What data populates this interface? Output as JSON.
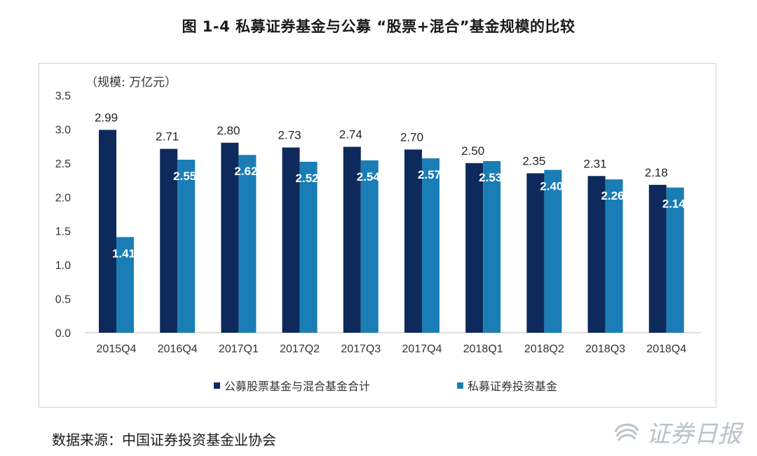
{
  "page": {
    "title": "图 1-4  私募证券基金与公募 “股票+混合”基金规模的比较",
    "unit_label": "（规模: 万亿元）",
    "source": "数据来源：中国证券投资基金业协会",
    "watermark": "证券日报"
  },
  "colors": {
    "series_public": "#0e2a5c",
    "series_private": "#1a7db5",
    "axis_text": "#333333"
  },
  "chart_data": {
    "type": "bar",
    "title": "图 1-4  私募证券基金与公募 “股票+混合”基金规模的比较",
    "xlabel": "",
    "ylabel": "（规模: 万亿元）",
    "ylim": [
      0,
      3.5
    ],
    "yticks": [
      "0.0",
      "0.5",
      "1.0",
      "1.5",
      "2.0",
      "2.5",
      "3.0",
      "3.5"
    ],
    "grid": false,
    "legend_position": "bottom",
    "categories": [
      "2015Q4",
      "2016Q4",
      "2017Q1",
      "2017Q2",
      "2017Q3",
      "2017Q4",
      "2018Q1",
      "2018Q2",
      "2018Q3",
      "2018Q4"
    ],
    "series": [
      {
        "name": "公募股票基金与混合基金合计",
        "values": [
          2.99,
          2.71,
          2.8,
          2.73,
          2.74,
          2.7,
          2.5,
          2.35,
          2.31,
          2.18
        ],
        "labels": [
          "2.99",
          "2.71",
          "2.80",
          "2.73",
          "2.74",
          "2.70",
          "2.50",
          "2.35",
          "2.31",
          "2.18"
        ]
      },
      {
        "name": "私募证券投资基金",
        "values": [
          1.41,
          2.55,
          2.62,
          2.52,
          2.54,
          2.57,
          2.53,
          2.4,
          2.26,
          2.14
        ],
        "labels": [
          "1.41",
          "2.55",
          "2.62",
          "2.52",
          "2.54",
          "2.57",
          "2.53",
          "2.40",
          "2.26",
          "2.14"
        ]
      }
    ]
  }
}
